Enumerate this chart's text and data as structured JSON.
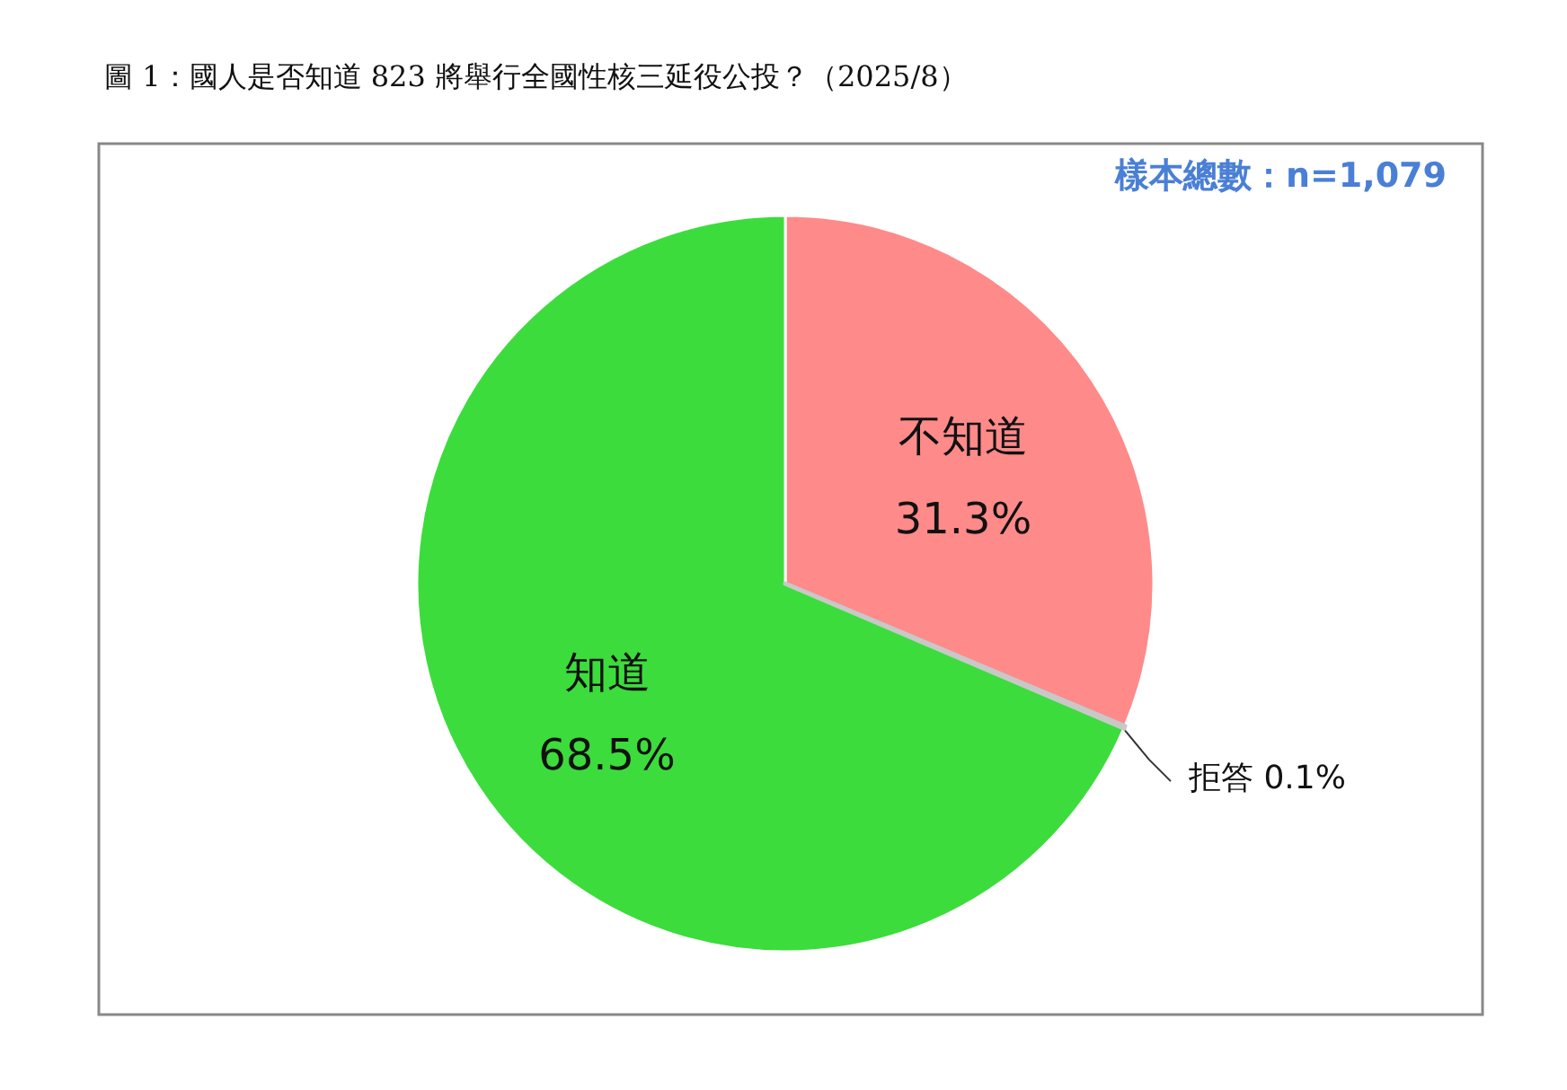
{
  "chart_data": {
    "type": "pie",
    "title": "圖 1：國人是否知道 823 將舉行全國性核三延役公投？（2025/8）",
    "categories": [
      "不知道",
      "拒答",
      "知道"
    ],
    "values": [
      31.3,
      0.1,
      68.5
    ],
    "value_labels": [
      "31.3%",
      "0.1%",
      "68.5%"
    ],
    "colors": [
      "#ff8a8a",
      "#c8c8c8",
      "#3cdc3c"
    ],
    "annotations": [
      "樣本總數：n=1,079"
    ]
  }
}
